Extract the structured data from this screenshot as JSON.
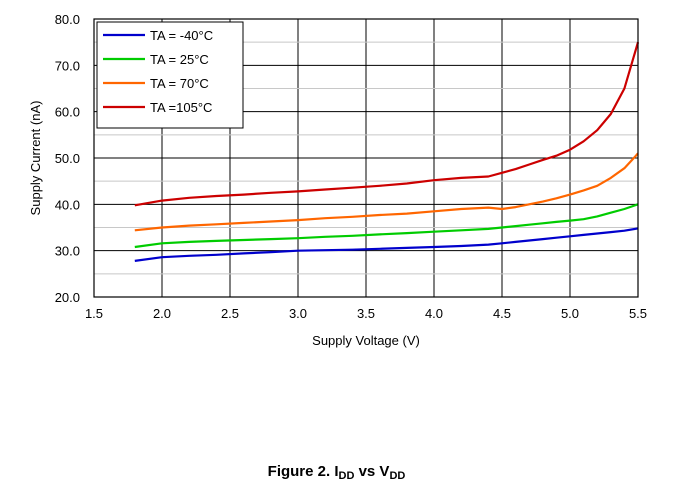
{
  "figure": {
    "caption_prefix": "Figure 2. I",
    "caption_sub1": "DD",
    "caption_mid": " vs V",
    "caption_sub2": "DD"
  },
  "chart_data": {
    "type": "line",
    "xlabel": "Supply Voltage (V)",
    "ylabel": "Supply Current (nA)",
    "xlim": [
      1.5,
      5.5
    ],
    "ylim": [
      20,
      80
    ],
    "xticks": [
      "1.5",
      "2.0",
      "2.5",
      "3.0",
      "3.5",
      "4.0",
      "4.5",
      "5.0",
      "5.5"
    ],
    "yticks": [
      "20.0",
      "30.0",
      "40.0",
      "50.0",
      "60.0",
      "70.0",
      "80.0"
    ],
    "grid": true,
    "legend_position": "top-left",
    "x": [
      1.8,
      2.0,
      2.2,
      2.4,
      2.6,
      2.8,
      3.0,
      3.2,
      3.4,
      3.6,
      3.8,
      4.0,
      4.2,
      4.4,
      4.5,
      4.6,
      4.7,
      4.8,
      4.9,
      5.0,
      5.1,
      5.2,
      5.3,
      5.4,
      5.5
    ],
    "series": [
      {
        "name": "TA = -40°C",
        "color": "#0000cc",
        "values": [
          27.8,
          28.6,
          28.9,
          29.1,
          29.4,
          29.7,
          30.0,
          30.1,
          30.2,
          30.4,
          30.6,
          30.8,
          31.0,
          31.3,
          31.6,
          31.9,
          32.2,
          32.5,
          32.8,
          33.1,
          33.4,
          33.7,
          34.0,
          34.3,
          34.8
        ]
      },
      {
        "name": "TA = 25°C",
        "color": "#00cc00",
        "values": [
          30.8,
          31.6,
          31.9,
          32.1,
          32.3,
          32.5,
          32.7,
          33.0,
          33.2,
          33.5,
          33.8,
          34.1,
          34.4,
          34.7,
          35.0,
          35.3,
          35.6,
          35.9,
          36.2,
          36.5,
          36.8,
          37.4,
          38.2,
          39.0,
          40.0
        ]
      },
      {
        "name": "TA = 70°C",
        "color": "#ff6600",
        "values": [
          34.4,
          35.0,
          35.4,
          35.7,
          36.0,
          36.3,
          36.6,
          37.0,
          37.3,
          37.7,
          38.0,
          38.5,
          39.0,
          39.3,
          39.0,
          39.4,
          40.0,
          40.6,
          41.3,
          42.1,
          43.0,
          44.0,
          45.7,
          47.8,
          51.0
        ]
      },
      {
        "name": "TA =105°C",
        "color": "#cc0000",
        "values": [
          39.8,
          40.8,
          41.4,
          41.8,
          42.1,
          42.5,
          42.8,
          43.2,
          43.6,
          44.0,
          44.5,
          45.2,
          45.7,
          46.0,
          46.8,
          47.6,
          48.6,
          49.6,
          50.5,
          51.8,
          53.6,
          56.0,
          59.5,
          65.0,
          75.0
        ]
      }
    ]
  }
}
